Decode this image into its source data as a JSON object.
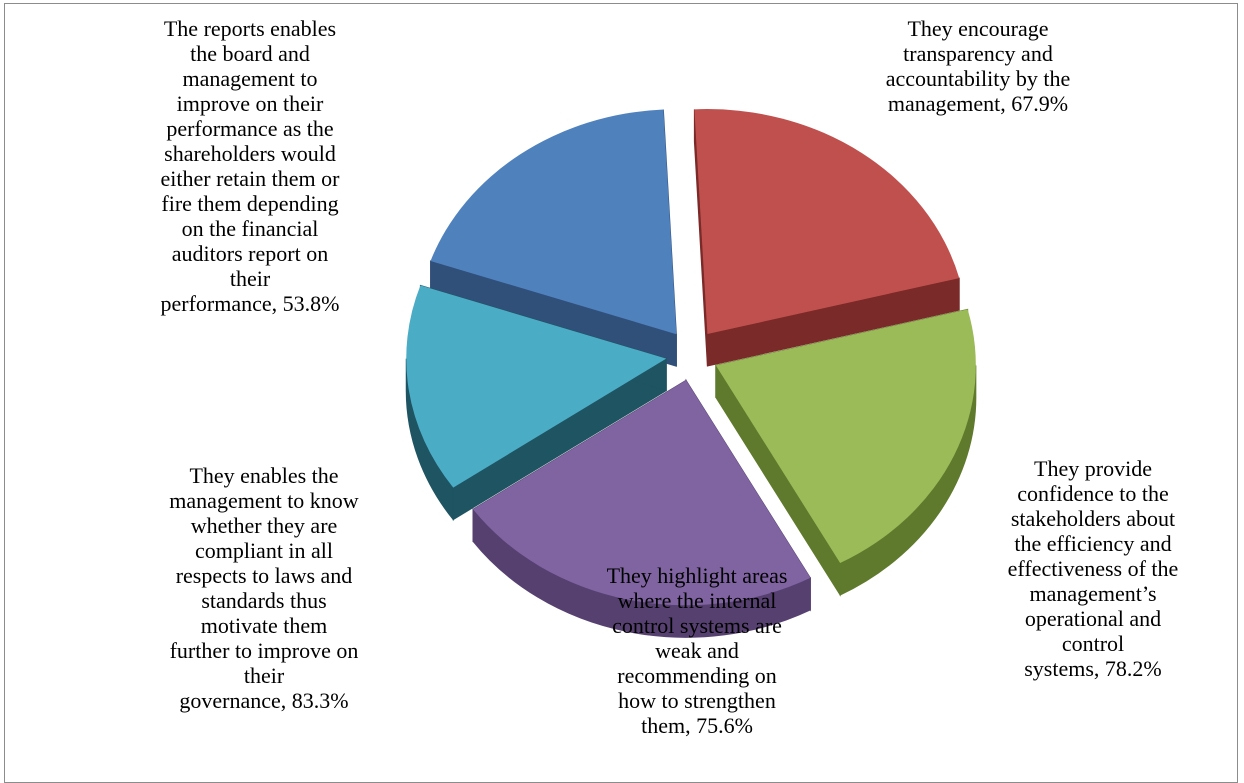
{
  "chart_data": {
    "type": "pie",
    "style": "3d-exploded",
    "categories": [
      "They encourage transparency and accountability by the management",
      "They provide confidence to the stakeholders about the efficiency and effectiveness of the management’s operational and control systems",
      "They highlight areas where the internal control systems are weak and recommending on how to strengthen them",
      "They enables the management to know whether they are compliant in all respects to laws and standards thus motivate them further to improve on their governance",
      "The reports enables the board and management to improve on their performance as the shareholders would either retain them or fire them depending on the financial auditors report on their performance"
    ],
    "values": [
      67.9,
      78.2,
      75.6,
      83.3,
      53.8
    ],
    "labels": [
      "They encourage\ntransparency and\naccountability by the\nmanagement, 67.9%",
      "They provide\nconfidence to the\nstakeholders about\nthe efficiency and\neffectiveness of the\nmanagement’s\noperational and\ncontrol\nsystems, 78.2%",
      "They highlight areas\nwhere the internal\ncontrol systems are\nweak and\nrecommending on\nhow to strengthen\nthem, 75.6%",
      "They enables the\nmanagement to know\nwhether they are\ncompliant in all\nrespects to laws and\nstandards thus\nmotivate them\nfurther to improve on\ntheir\ngovernance, 83.3%",
      "The reports enables\nthe board and\nmanagement to\nimprove on their\nperformance as the\nshareholders would\neither retain them or\nfire them depending\non the financial\nauditors report on\ntheir\nperformance, 53.8%"
    ],
    "colors": [
      "#4F81BD",
      "#C0504D",
      "#9BBB59",
      "#8064A2",
      "#4BACC6"
    ],
    "side_colors": [
      "#30507A",
      "#7A2A28",
      "#5F7A2C",
      "#564070",
      "#1F5462"
    ],
    "legend": "none",
    "title": ""
  }
}
